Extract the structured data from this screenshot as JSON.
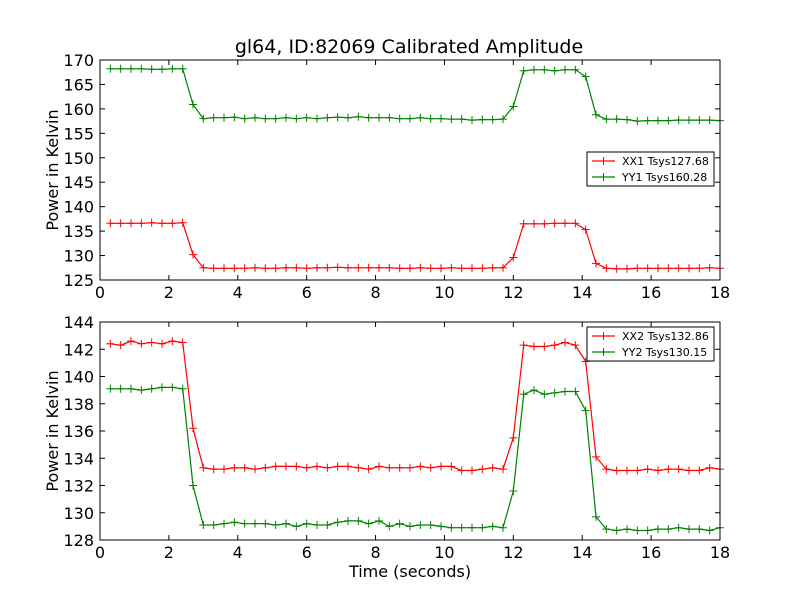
{
  "figure_title": "gl64, ID:82069 Calibrated Amplitude",
  "colors": {
    "red": "#ff0000",
    "green": "#008000",
    "axes": "#000000",
    "background": "#ffffff"
  },
  "chart_data": [
    {
      "type": "line",
      "title": "gl64, ID:82069 Calibrated Amplitude",
      "xlabel": "",
      "ylabel": "Power in Kelvin",
      "xlim": [
        0,
        18
      ],
      "ylim": [
        125,
        170
      ],
      "xticks": [
        0,
        2,
        4,
        6,
        8,
        10,
        12,
        14,
        16,
        18
      ],
      "yticks": [
        125,
        130,
        135,
        140,
        145,
        150,
        155,
        160,
        165,
        170
      ],
      "grid": false,
      "legend_position": "center-right",
      "marker": "plus",
      "x": [
        0.3,
        0.6,
        0.9,
        1.2,
        1.5,
        1.8,
        2.1,
        2.4,
        2.7,
        3.0,
        3.3,
        3.6,
        3.9,
        4.2,
        4.5,
        4.8,
        5.1,
        5.4,
        5.7,
        6.0,
        6.3,
        6.6,
        6.9,
        7.2,
        7.5,
        7.8,
        8.1,
        8.4,
        8.7,
        9.0,
        9.3,
        9.6,
        9.9,
        10.2,
        10.5,
        10.8,
        11.1,
        11.4,
        11.7,
        12.0,
        12.3,
        12.6,
        12.9,
        13.2,
        13.5,
        13.8,
        14.1,
        14.4,
        14.7,
        15.0,
        15.3,
        15.6,
        15.9,
        16.2,
        16.5,
        16.8,
        17.1,
        17.4,
        17.7,
        18.0
      ],
      "series": [
        {
          "name": "XX1 Tsys127.68",
          "color": "#ff0000",
          "values": [
            136.6,
            136.6,
            136.6,
            136.6,
            136.7,
            136.6,
            136.6,
            136.7,
            130.2,
            127.5,
            127.4,
            127.4,
            127.4,
            127.4,
            127.5,
            127.4,
            127.4,
            127.5,
            127.5,
            127.4,
            127.5,
            127.5,
            127.6,
            127.5,
            127.5,
            127.5,
            127.5,
            127.5,
            127.4,
            127.4,
            127.5,
            127.4,
            127.4,
            127.5,
            127.4,
            127.4,
            127.4,
            127.5,
            127.5,
            129.6,
            136.5,
            136.5,
            136.5,
            136.6,
            136.6,
            136.6,
            135.3,
            128.4,
            127.4,
            127.3,
            127.3,
            127.4,
            127.4,
            127.4,
            127.4,
            127.4,
            127.4,
            127.4,
            127.5,
            127.4
          ]
        },
        {
          "name": "YY1 Tsys160.28",
          "color": "#008000",
          "values": [
            168.2,
            168.2,
            168.2,
            168.2,
            168.1,
            168.1,
            168.2,
            168.2,
            160.9,
            158.0,
            158.2,
            158.2,
            158.3,
            158.0,
            158.2,
            158.0,
            158.0,
            158.2,
            158.0,
            158.2,
            158.0,
            158.2,
            158.3,
            158.2,
            158.4,
            158.2,
            158.2,
            158.2,
            158.0,
            158.0,
            158.2,
            158.0,
            158.0,
            157.9,
            157.9,
            157.7,
            157.8,
            157.8,
            157.9,
            160.5,
            167.8,
            168.0,
            168.0,
            167.8,
            168.0,
            168.0,
            166.6,
            158.8,
            157.9,
            157.9,
            157.8,
            157.5,
            157.6,
            157.6,
            157.6,
            157.7,
            157.7,
            157.7,
            157.7,
            157.6
          ]
        }
      ]
    },
    {
      "type": "line",
      "title": "",
      "xlabel": "Time (seconds)",
      "ylabel": "Power in Kelvin",
      "xlim": [
        0,
        18
      ],
      "ylim": [
        128,
        144
      ],
      "xticks": [
        0,
        2,
        4,
        6,
        8,
        10,
        12,
        14,
        16,
        18
      ],
      "yticks": [
        128,
        130,
        132,
        134,
        136,
        138,
        140,
        142,
        144
      ],
      "grid": false,
      "legend_position": "top-right",
      "marker": "plus",
      "x": [
        0.3,
        0.6,
        0.9,
        1.2,
        1.5,
        1.8,
        2.1,
        2.4,
        2.7,
        3.0,
        3.3,
        3.6,
        3.9,
        4.2,
        4.5,
        4.8,
        5.1,
        5.4,
        5.7,
        6.0,
        6.3,
        6.6,
        6.9,
        7.2,
        7.5,
        7.8,
        8.1,
        8.4,
        8.7,
        9.0,
        9.3,
        9.6,
        9.9,
        10.2,
        10.5,
        10.8,
        11.1,
        11.4,
        11.7,
        12.0,
        12.3,
        12.6,
        12.9,
        13.2,
        13.5,
        13.8,
        14.1,
        14.4,
        14.7,
        15.0,
        15.3,
        15.6,
        15.9,
        16.2,
        16.5,
        16.8,
        17.1,
        17.4,
        17.7,
        18.0
      ],
      "series": [
        {
          "name": "XX2 Tsys132.86",
          "color": "#ff0000",
          "values": [
            142.4,
            142.3,
            142.6,
            142.4,
            142.5,
            142.4,
            142.6,
            142.5,
            136.2,
            133.3,
            133.2,
            133.2,
            133.3,
            133.3,
            133.2,
            133.3,
            133.4,
            133.4,
            133.4,
            133.3,
            133.4,
            133.3,
            133.4,
            133.4,
            133.3,
            133.2,
            133.4,
            133.3,
            133.3,
            133.3,
            133.4,
            133.3,
            133.4,
            133.4,
            133.1,
            133.1,
            133.2,
            133.3,
            133.2,
            135.5,
            142.3,
            142.2,
            142.2,
            142.3,
            142.5,
            142.3,
            141.1,
            134.1,
            133.2,
            133.1,
            133.1,
            133.1,
            133.2,
            133.1,
            133.2,
            133.2,
            133.1,
            133.1,
            133.3,
            133.2
          ]
        },
        {
          "name": "YY2 Tsys130.15",
          "color": "#008000",
          "values": [
            139.1,
            139.1,
            139.1,
            139.0,
            139.1,
            139.2,
            139.2,
            139.1,
            132.0,
            129.1,
            129.1,
            129.2,
            129.3,
            129.2,
            129.2,
            129.2,
            129.1,
            129.2,
            129.0,
            129.2,
            129.1,
            129.1,
            129.3,
            129.4,
            129.4,
            129.2,
            129.4,
            129.0,
            129.2,
            129.0,
            129.1,
            129.1,
            129.0,
            128.9,
            128.9,
            128.9,
            128.9,
            129.0,
            128.9,
            131.6,
            138.7,
            139.0,
            138.7,
            138.8,
            138.9,
            138.9,
            137.5,
            129.7,
            128.8,
            128.7,
            128.8,
            128.7,
            128.7,
            128.8,
            128.8,
            128.9,
            128.8,
            128.8,
            128.7,
            128.9
          ]
        }
      ]
    }
  ]
}
